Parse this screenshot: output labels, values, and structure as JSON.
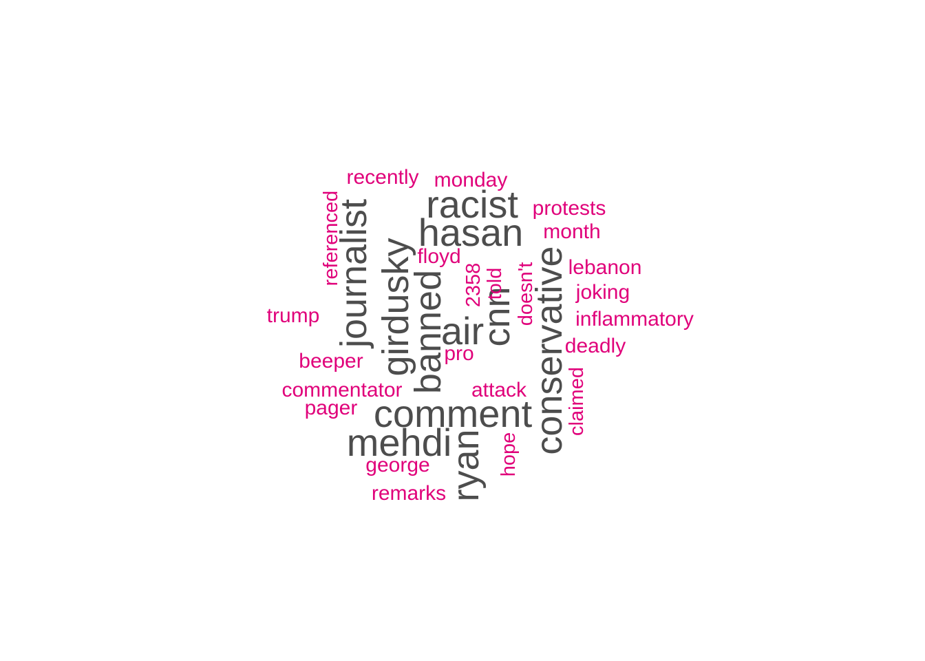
{
  "colors": {
    "major": "#4d4d4d",
    "minor": "#e0007a",
    "background": "#ffffff"
  },
  "words": {
    "racist": "racist",
    "hasan": "hasan",
    "comment": "comment",
    "mehdi": "mehdi",
    "air": "air",
    "journalist": "journalist",
    "girdusky": "girdusky",
    "banned": "banned",
    "cnn": "cnn",
    "conservative": "conservative",
    "ryan": "ryan",
    "recently": "recently",
    "monday": "monday",
    "protests": "protests",
    "month": "month",
    "floyd": "floyd",
    "lebanon": "lebanon",
    "joking": "joking",
    "inflammatory": "inflammatory",
    "deadly": "deadly",
    "trump": "trump",
    "beeper": "beeper",
    "pro": "pro",
    "commentator": "commentator",
    "attack": "attack",
    "pager": "pager",
    "george": "george",
    "remarks": "remarks",
    "referenced": "referenced",
    "n2358": "2358",
    "told": "told",
    "doesnt": "doesn't",
    "claimed": "claimed",
    "hope": "hope"
  }
}
